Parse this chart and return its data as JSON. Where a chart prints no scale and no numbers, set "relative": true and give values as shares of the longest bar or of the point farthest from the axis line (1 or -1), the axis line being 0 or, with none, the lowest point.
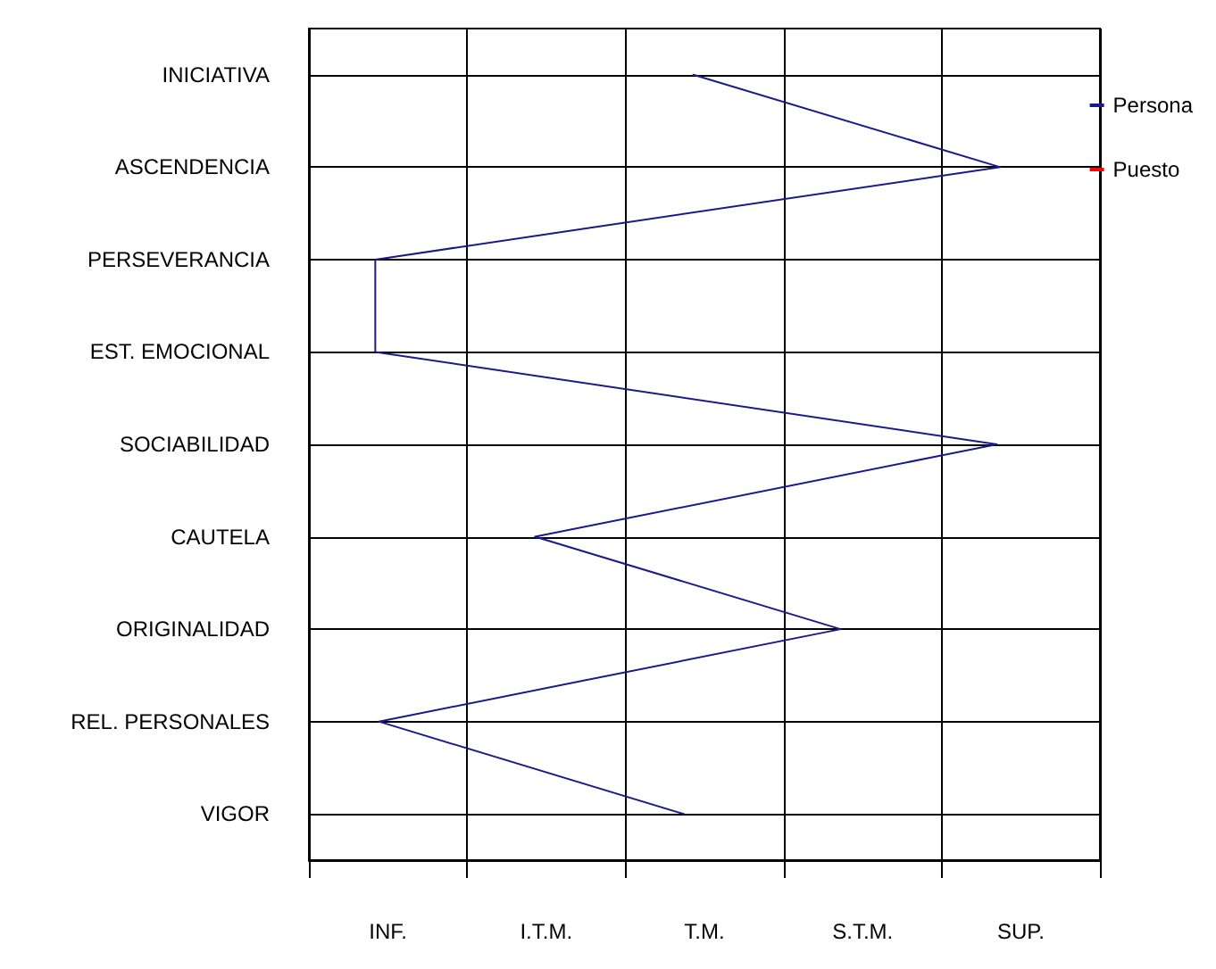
{
  "chart_data": {
    "type": "line",
    "orientation": "horizontal",
    "relative": true,
    "categories": [
      "INICIATIVA",
      "ASCENDENCIA",
      "PERSEVERANCIA",
      "EST. EMOCIONAL",
      "SOCIABILIDAD",
      "CAUTELA",
      "ORIGINALIDAD",
      "REL. PERSONALES",
      "VIGOR"
    ],
    "series": [
      {
        "name": "Persona",
        "color": "#1a1a8c",
        "values": [
          0.556,
          1,
          0.096,
          0.096,
          0.995,
          0.327,
          0.769,
          0.101,
          0.542
        ]
      },
      {
        "name": "Puesto",
        "color": "#ff0000",
        "values": [
          null,
          null,
          null,
          null,
          null,
          null,
          null,
          null,
          null
        ]
      }
    ],
    "annotations": [
      "INF.",
      "I.T.M.",
      "T.M.",
      "S.T.M.",
      "SUP."
    ],
    "grid": true,
    "legend": "top right",
    "marker": "none",
    "line_style": "solid"
  }
}
